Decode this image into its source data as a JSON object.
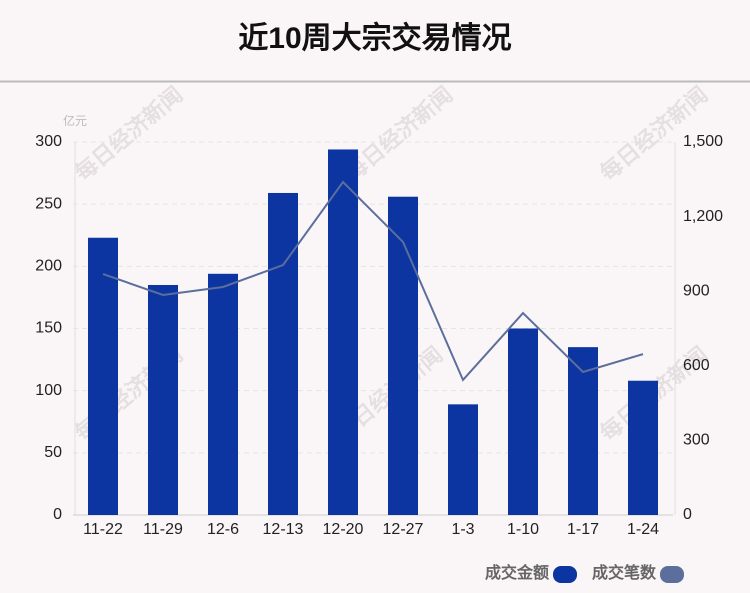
{
  "chart_data": {
    "type": "bar-line",
    "title": "近10周大宗交易情况",
    "y_unit": "亿元",
    "watermark": "每日经济新闻",
    "categories": [
      "11-22",
      "11-29",
      "12-6",
      "12-13",
      "12-20",
      "12-27",
      "1-3",
      "1-10",
      "1-17",
      "1-24"
    ],
    "series": [
      {
        "name": "成交金额",
        "color": "#0c35a2",
        "type": "bar",
        "values": [
          223,
          185,
          194,
          259,
          294,
          256,
          89,
          150,
          135,
          108
        ]
      },
      {
        "name": "成交笔数",
        "color": "#5b6e9c",
        "type": "line",
        "axis": "y2",
        "values": [
          969,
          885,
          917,
          1005,
          1339,
          1098,
          543,
          812,
          575,
          647
        ]
      }
    ],
    "ylim": [
      0,
      300
    ],
    "yticks": [
      0,
      50,
      100,
      150,
      200,
      250,
      300
    ],
    "y2lim": [
      0,
      1500
    ],
    "y2ticks": [
      0,
      300,
      600,
      900,
      {
        "value": 1200,
        "label": "1,200"
      },
      {
        "value": 1500,
        "label": "1,500"
      }
    ],
    "grid": true,
    "legend": "bottom-right"
  }
}
